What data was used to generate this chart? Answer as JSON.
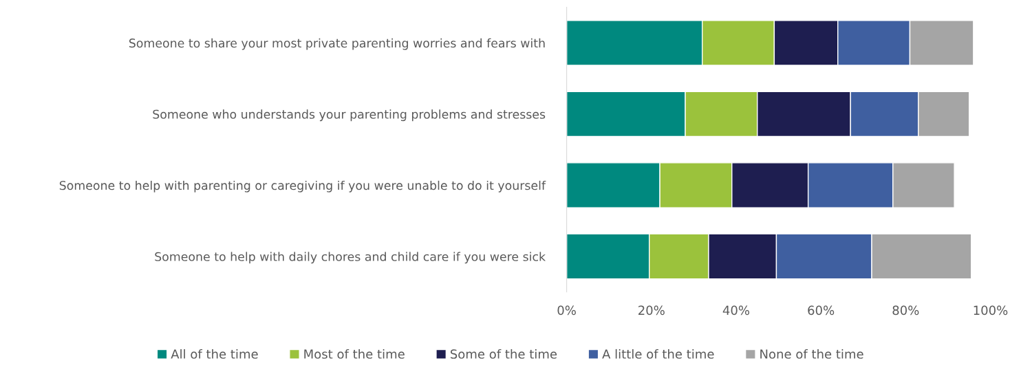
{
  "chart_data": {
    "type": "bar",
    "orientation": "horizontal",
    "stacked": true,
    "categories": [
      "Someone to share your most private parenting worries and fears with",
      "Someone who understands your parenting problems and stresses",
      "Someone to help with parenting or caregiving if you were unable to do it yourself",
      "Someone to help with daily chores and child care if you were sick"
    ],
    "series": [
      {
        "name": "All of the time",
        "color": "#00897f",
        "values": [
          32,
          28,
          22,
          19.5
        ]
      },
      {
        "name": "Most of the time",
        "color": "#9bc23c",
        "values": [
          17,
          17,
          17,
          14
        ]
      },
      {
        "name": "Some of the time",
        "color": "#1e1e50",
        "values": [
          15,
          22,
          18,
          16
        ]
      },
      {
        "name": "A little of the time",
        "color": "#3f5fa0",
        "values": [
          17,
          16,
          20,
          22.5
        ]
      },
      {
        "name": "None of the time",
        "color": "#a5a5a5",
        "values": [
          15,
          12,
          14.5,
          23.5
        ]
      }
    ],
    "xlim": [
      0,
      100
    ],
    "xticks": [
      {
        "value": 0,
        "label": "0%"
      },
      {
        "value": 20,
        "label": "20%"
      },
      {
        "value": 40,
        "label": "40%"
      },
      {
        "value": 60,
        "label": "60%"
      },
      {
        "value": 80,
        "label": "80%"
      },
      {
        "value": 100,
        "label": "100%"
      }
    ],
    "grid": false,
    "legend": "bottom"
  }
}
